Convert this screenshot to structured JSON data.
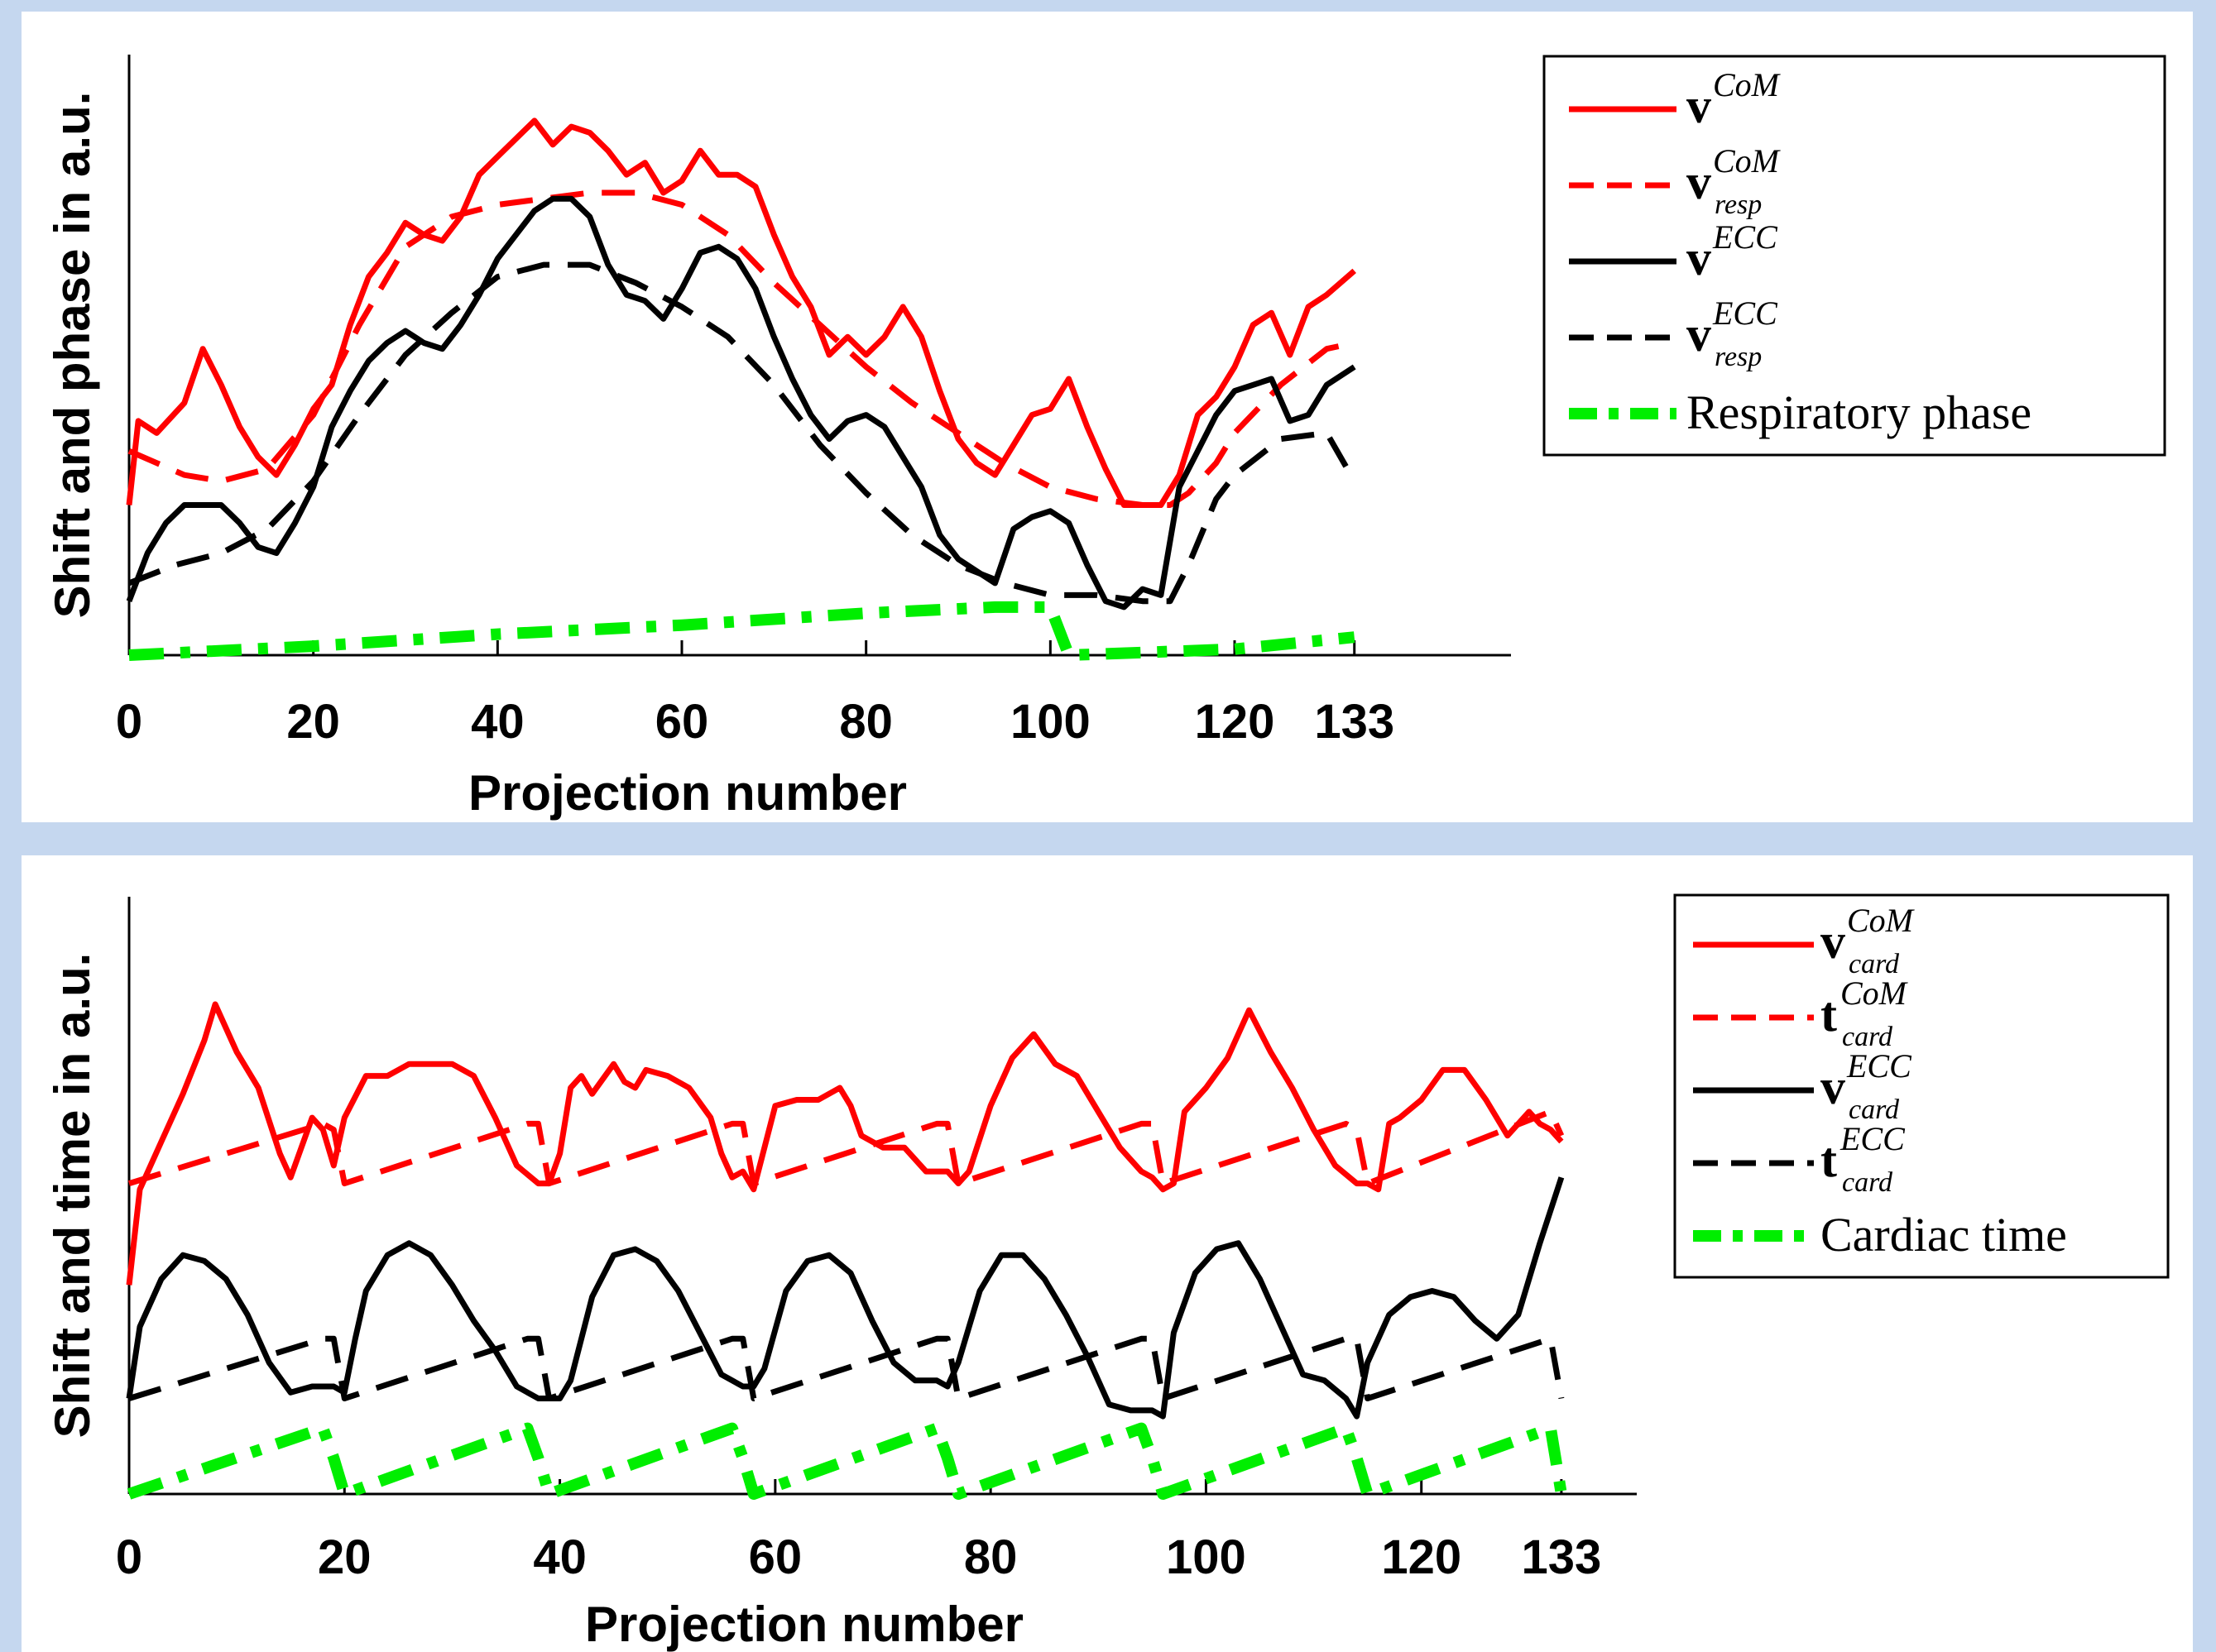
{
  "chart_data": [
    {
      "type": "line",
      "xlabel": "Projection number",
      "ylabel": "Shift and phase in a.u.",
      "xlim": [
        0,
        150
      ],
      "ylim": [
        0,
        1
      ],
      "xticks": [
        0,
        20,
        40,
        60,
        80,
        100,
        120,
        133
      ],
      "grid": false,
      "legend_position": "top-right",
      "series": [
        {
          "name": "v^CoM",
          "base": "v",
          "sup": "CoM",
          "sub": "",
          "color": "#ff0000",
          "style": "solid",
          "x": [
            0,
            1,
            3,
            6,
            8,
            10,
            12,
            14,
            16,
            18,
            20,
            22,
            24,
            26,
            28,
            30,
            32,
            34,
            36,
            38,
            40,
            42,
            44,
            46,
            48,
            50,
            52,
            54,
            56,
            58,
            60,
            62,
            64,
            66,
            68,
            70,
            72,
            74,
            76,
            78,
            80,
            82,
            84,
            86,
            88,
            90,
            92,
            94,
            96,
            98,
            100,
            102,
            104,
            106,
            108,
            110,
            112,
            114,
            116,
            118,
            120,
            122,
            124,
            126,
            128,
            130,
            133
          ],
          "y": [
            0.25,
            0.39,
            0.37,
            0.42,
            0.51,
            0.45,
            0.38,
            0.33,
            0.3,
            0.35,
            0.41,
            0.45,
            0.55,
            0.63,
            0.67,
            0.72,
            0.7,
            0.69,
            0.73,
            0.8,
            0.83,
            0.86,
            0.89,
            0.85,
            0.88,
            0.87,
            0.84,
            0.8,
            0.82,
            0.77,
            0.79,
            0.84,
            0.8,
            0.8,
            0.78,
            0.7,
            0.63,
            0.58,
            0.5,
            0.53,
            0.5,
            0.53,
            0.58,
            0.53,
            0.44,
            0.36,
            0.32,
            0.3,
            0.35,
            0.4,
            0.41,
            0.46,
            0.38,
            0.31,
            0.25,
            0.25,
            0.25,
            0.3,
            0.4,
            0.43,
            0.48,
            0.55,
            0.57,
            0.5,
            0.58,
            0.6,
            0.64
          ]
        },
        {
          "name": "v^CoM_resp",
          "base": "v",
          "sup": "CoM",
          "sub": "resp",
          "color": "#ff0000",
          "style": "dashed",
          "x": [
            0,
            3,
            6,
            10,
            15,
            20,
            25,
            30,
            35,
            40,
            45,
            50,
            55,
            60,
            65,
            70,
            75,
            80,
            85,
            90,
            95,
            100,
            105,
            110,
            113,
            115,
            118,
            120,
            125,
            130,
            133
          ],
          "y": [
            0.34,
            0.32,
            0.3,
            0.29,
            0.31,
            0.4,
            0.55,
            0.68,
            0.73,
            0.75,
            0.76,
            0.77,
            0.77,
            0.75,
            0.7,
            0.62,
            0.55,
            0.48,
            0.42,
            0.37,
            0.32,
            0.28,
            0.26,
            0.25,
            0.25,
            0.27,
            0.32,
            0.37,
            0.45,
            0.51,
            0.52
          ]
        },
        {
          "name": "v^ECC",
          "base": "v",
          "sup": "ECC",
          "sub": "",
          "color": "#000000",
          "style": "solid",
          "x": [
            0,
            2,
            4,
            6,
            8,
            10,
            12,
            14,
            16,
            18,
            20,
            22,
            24,
            26,
            28,
            30,
            32,
            34,
            36,
            38,
            40,
            42,
            44,
            46,
            48,
            50,
            52,
            54,
            56,
            58,
            60,
            62,
            64,
            66,
            68,
            70,
            72,
            74,
            76,
            78,
            80,
            82,
            84,
            86,
            88,
            90,
            92,
            94,
            96,
            98,
            100,
            102,
            104,
            106,
            108,
            110,
            112,
            114,
            116,
            118,
            120,
            122,
            124,
            126,
            128,
            130,
            133
          ],
          "y": [
            0.09,
            0.17,
            0.22,
            0.25,
            0.25,
            0.25,
            0.22,
            0.18,
            0.17,
            0.22,
            0.28,
            0.38,
            0.44,
            0.49,
            0.52,
            0.54,
            0.52,
            0.51,
            0.55,
            0.6,
            0.66,
            0.7,
            0.74,
            0.76,
            0.76,
            0.73,
            0.65,
            0.6,
            0.59,
            0.56,
            0.61,
            0.67,
            0.68,
            0.66,
            0.61,
            0.53,
            0.46,
            0.4,
            0.36,
            0.39,
            0.4,
            0.38,
            0.33,
            0.28,
            0.2,
            0.16,
            0.14,
            0.12,
            0.21,
            0.23,
            0.24,
            0.22,
            0.15,
            0.09,
            0.08,
            0.11,
            0.1,
            0.28,
            0.34,
            0.4,
            0.44,
            0.45,
            0.46,
            0.39,
            0.4,
            0.45,
            0.48
          ]
        },
        {
          "name": "v^ECC_resp",
          "base": "v",
          "sup": "ECC",
          "sub": "resp",
          "color": "#000000",
          "style": "dashed",
          "x": [
            0,
            5,
            10,
            15,
            20,
            25,
            30,
            35,
            40,
            45,
            50,
            55,
            60,
            65,
            70,
            75,
            80,
            85,
            90,
            95,
            100,
            105,
            110,
            113,
            115,
            118,
            120,
            125,
            130,
            133
          ],
          "y": [
            0.12,
            0.15,
            0.17,
            0.21,
            0.29,
            0.4,
            0.5,
            0.57,
            0.63,
            0.65,
            0.65,
            0.62,
            0.58,
            0.53,
            0.45,
            0.35,
            0.27,
            0.2,
            0.15,
            0.12,
            0.1,
            0.1,
            0.09,
            0.09,
            0.15,
            0.26,
            0.3,
            0.36,
            0.37,
            0.29
          ]
        },
        {
          "name": "Respiratory phase",
          "base": "Respiratory phase",
          "sup": "",
          "sub": "",
          "color": "#00ee00",
          "style": "dash-dot",
          "x": [
            0,
            20,
            40,
            60,
            80,
            94,
            100,
            101,
            102,
            120,
            133
          ],
          "y": [
            0.0,
            0.015,
            0.035,
            0.05,
            0.07,
            0.08,
            0.08,
            0.04,
            0.0,
            0.01,
            0.03
          ]
        }
      ]
    },
    {
      "type": "line",
      "xlabel": "Projection number",
      "ylabel": "Shift and time in a.u.",
      "xlim": [
        0,
        140
      ],
      "ylim": [
        0,
        1
      ],
      "xticks": [
        0,
        20,
        40,
        60,
        80,
        100,
        120,
        133
      ],
      "grid": false,
      "legend_position": "top-right",
      "series": [
        {
          "name": "v^CoM_card",
          "base": "v",
          "sup": "CoM",
          "sub": "card",
          "color": "#ff0000",
          "style": "solid",
          "x": [
            0,
            1,
            3,
            5,
            7,
            8,
            10,
            12,
            14,
            15,
            17,
            18,
            19,
            20,
            22,
            24,
            26,
            28,
            30,
            32,
            34,
            36,
            38,
            39,
            40,
            41,
            42,
            43,
            45,
            46,
            47,
            48,
            50,
            52,
            54,
            55,
            56,
            57,
            58,
            60,
            62,
            64,
            66,
            67,
            68,
            70,
            72,
            74,
            76,
            77,
            78,
            80,
            82,
            84,
            86,
            88,
            90,
            92,
            94,
            95,
            96,
            97,
            98,
            100,
            102,
            104,
            106,
            108,
            110,
            112,
            114,
            115,
            116,
            117,
            118,
            120,
            122,
            124,
            126,
            128,
            130,
            131,
            132,
            133
          ],
          "y": [
            0.35,
            0.51,
            0.59,
            0.67,
            0.76,
            0.82,
            0.74,
            0.68,
            0.57,
            0.53,
            0.63,
            0.61,
            0.55,
            0.63,
            0.7,
            0.7,
            0.72,
            0.72,
            0.72,
            0.7,
            0.63,
            0.55,
            0.52,
            0.52,
            0.57,
            0.68,
            0.7,
            0.67,
            0.72,
            0.69,
            0.68,
            0.71,
            0.7,
            0.68,
            0.63,
            0.57,
            0.53,
            0.54,
            0.51,
            0.65,
            0.66,
            0.66,
            0.68,
            0.65,
            0.6,
            0.58,
            0.58,
            0.54,
            0.54,
            0.52,
            0.54,
            0.65,
            0.73,
            0.77,
            0.72,
            0.7,
            0.64,
            0.58,
            0.54,
            0.53,
            0.51,
            0.52,
            0.64,
            0.68,
            0.73,
            0.81,
            0.74,
            0.68,
            0.61,
            0.55,
            0.52,
            0.52,
            0.51,
            0.62,
            0.63,
            0.66,
            0.71,
            0.71,
            0.66,
            0.6,
            0.64,
            0.62,
            0.61,
            0.59
          ]
        },
        {
          "name": "t^CoM_card",
          "base": "t",
          "sup": "CoM",
          "sub": "card",
          "color": "#ff0000",
          "style": "dashed",
          "x": [
            0,
            18,
            19,
            20,
            37,
            38,
            39,
            56,
            57,
            58,
            75,
            76,
            77,
            94,
            95,
            96,
            113,
            114,
            115,
            132,
            133
          ],
          "y": [
            0.52,
            0.62,
            0.61,
            0.52,
            0.62,
            0.62,
            0.52,
            0.62,
            0.62,
            0.52,
            0.62,
            0.62,
            0.52,
            0.62,
            0.62,
            0.52,
            0.62,
            0.61,
            0.52,
            0.64,
            0.6
          ]
        },
        {
          "name": "v^ECC_card",
          "base": "v",
          "sup": "ECC",
          "sub": "card",
          "color": "#000000",
          "style": "solid",
          "x": [
            0,
            1,
            3,
            5,
            7,
            9,
            11,
            13,
            15,
            17,
            19,
            20,
            21,
            22,
            24,
            26,
            28,
            30,
            32,
            34,
            36,
            38,
            40,
            41,
            43,
            45,
            47,
            49,
            51,
            53,
            55,
            57,
            58,
            59,
            61,
            63,
            65,
            67,
            69,
            71,
            73,
            75,
            76,
            77,
            79,
            81,
            83,
            85,
            87,
            89,
            91,
            93,
            95,
            96,
            97,
            99,
            101,
            103,
            105,
            107,
            109,
            111,
            113,
            114,
            115,
            117,
            119,
            121,
            123,
            125,
            127,
            129,
            131,
            133
          ],
          "y": [
            0.16,
            0.28,
            0.36,
            0.4,
            0.39,
            0.36,
            0.3,
            0.22,
            0.17,
            0.18,
            0.18,
            0.17,
            0.26,
            0.34,
            0.4,
            0.42,
            0.4,
            0.35,
            0.29,
            0.24,
            0.18,
            0.16,
            0.16,
            0.19,
            0.33,
            0.4,
            0.41,
            0.39,
            0.34,
            0.27,
            0.2,
            0.18,
            0.18,
            0.21,
            0.34,
            0.39,
            0.4,
            0.37,
            0.29,
            0.22,
            0.19,
            0.19,
            0.18,
            0.22,
            0.34,
            0.4,
            0.4,
            0.36,
            0.3,
            0.23,
            0.15,
            0.14,
            0.14,
            0.13,
            0.27,
            0.37,
            0.41,
            0.42,
            0.36,
            0.28,
            0.2,
            0.19,
            0.16,
            0.13,
            0.22,
            0.3,
            0.33,
            0.34,
            0.33,
            0.29,
            0.26,
            0.3,
            0.42,
            0.53
          ]
        },
        {
          "name": "t^ECC_card",
          "base": "t",
          "sup": "ECC",
          "sub": "card",
          "color": "#000000",
          "style": "dashed",
          "x": [
            0,
            18,
            19,
            20,
            37,
            38,
            39,
            56,
            57,
            58,
            75,
            76,
            77,
            94,
            95,
            96,
            113,
            114,
            115,
            132,
            133
          ],
          "y": [
            0.16,
            0.26,
            0.26,
            0.16,
            0.26,
            0.26,
            0.16,
            0.26,
            0.26,
            0.16,
            0.26,
            0.26,
            0.16,
            0.26,
            0.26,
            0.16,
            0.26,
            0.26,
            0.16,
            0.26,
            0.16
          ]
        },
        {
          "name": "Cardiac time",
          "base": "Cardiac time",
          "sup": "",
          "sub": "",
          "color": "#00ee00",
          "style": "dash-dot",
          "x": [
            0,
            18,
            19,
            20,
            37,
            38,
            39,
            56,
            57,
            58,
            75,
            76,
            77,
            94,
            95,
            96,
            113,
            114,
            115,
            132,
            133
          ],
          "y": [
            0.0,
            0.11,
            0.06,
            0.0,
            0.11,
            0.06,
            0.0,
            0.11,
            0.06,
            0.0,
            0.11,
            0.06,
            0.0,
            0.11,
            0.06,
            0.0,
            0.11,
            0.06,
            0.0,
            0.11,
            0.0
          ]
        }
      ]
    }
  ]
}
